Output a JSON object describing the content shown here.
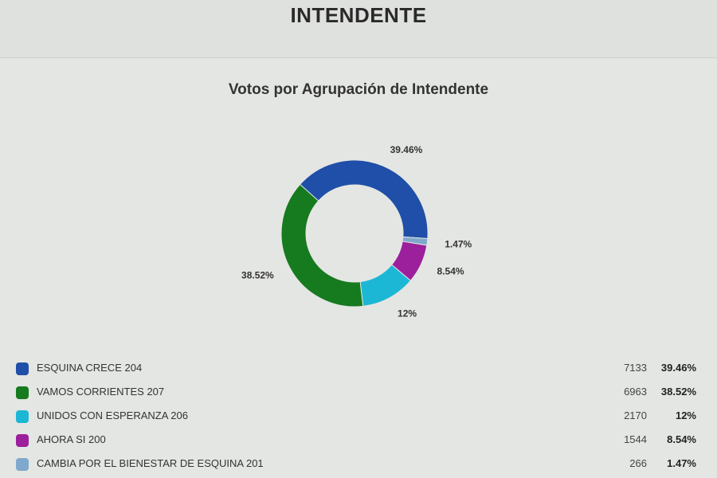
{
  "header": {
    "title": "INTENDENTE"
  },
  "chart_data": {
    "type": "pie",
    "variant": "donut",
    "title": "Votos por Agrupación de Intendente",
    "legend_position": "bottom",
    "categories": [
      "ESQUINA CRECE 204",
      "VAMOS CORRIENTES 207",
      "UNIDOS CON ESPERANZA 206",
      "AHORA SI 200",
      "CAMBIA POR EL BIENESTAR DE ESQUINA 201"
    ],
    "votes": [
      7133,
      6963,
      2170,
      1544,
      266
    ],
    "values": [
      39.46,
      38.52,
      12,
      8.54,
      1.47
    ],
    "percent_labels": [
      "39.46%",
      "38.52%",
      "12%",
      "8.54%",
      "1.47%"
    ],
    "colors": [
      "#1f4fa8",
      "#167a1f",
      "#1db7d6",
      "#9c1f9c",
      "#7fa8cc"
    ]
  }
}
